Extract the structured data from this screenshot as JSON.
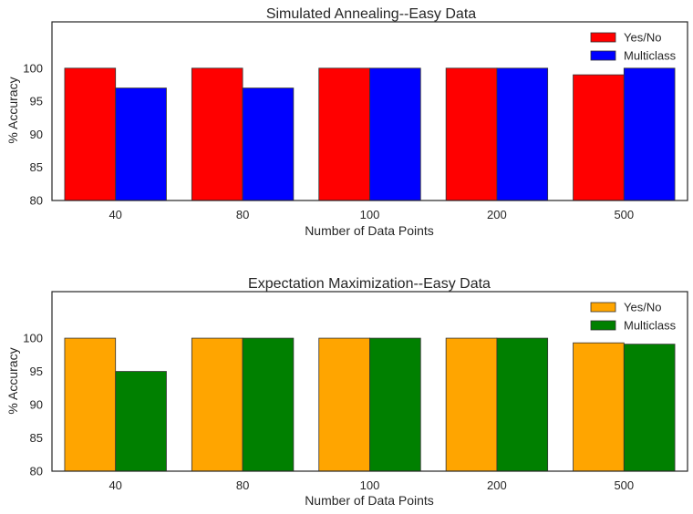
{
  "chart_data": [
    {
      "type": "bar",
      "title": "Simulated Annealing--Easy Data",
      "xlabel": "Number of Data Points",
      "ylabel": "% Accuracy",
      "categories": [
        "40",
        "80",
        "100",
        "200",
        "500"
      ],
      "ylim": [
        80,
        107
      ],
      "yticks": [
        80,
        85,
        90,
        95,
        100
      ],
      "grid": false,
      "legend": "top-right",
      "series": [
        {
          "name": "Yes/No",
          "color": "#ff0000",
          "values": [
            100,
            100,
            100,
            100,
            99
          ]
        },
        {
          "name": "Multiclass",
          "color": "#0000ff",
          "values": [
            97,
            97,
            100,
            100,
            100
          ]
        }
      ]
    },
    {
      "type": "bar",
      "title": "Expectation Maximization--Easy Data",
      "xlabel": "Number of Data Points",
      "ylabel": "% Accuracy",
      "categories": [
        "40",
        "80",
        "100",
        "200",
        "500"
      ],
      "ylim": [
        80,
        107
      ],
      "yticks": [
        80,
        85,
        90,
        95,
        100
      ],
      "grid": false,
      "legend": "top-right",
      "series": [
        {
          "name": "Yes/No",
          "color": "#ffa500",
          "values": [
            100,
            100,
            100,
            100,
            99.3
          ]
        },
        {
          "name": "Multiclass",
          "color": "#008000",
          "values": [
            95,
            100,
            100,
            100,
            99.1
          ]
        }
      ]
    }
  ]
}
